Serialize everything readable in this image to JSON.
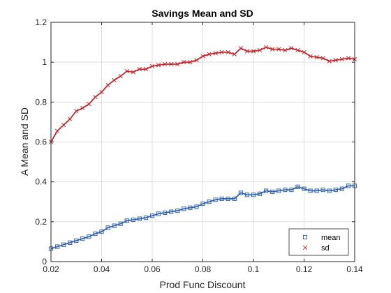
{
  "chart_data": {
    "type": "line",
    "title": "Savings Mean and SD",
    "xlabel": "Prod Func Discount",
    "ylabel": "A Mean and SD",
    "xlim": [
      0.02,
      0.14
    ],
    "ylim": [
      0,
      1.2
    ],
    "x_ticks": [
      "0.02",
      "0.04",
      "0.06",
      "0.08",
      "0.1",
      "0.12",
      "0.14"
    ],
    "y_ticks": [
      "0",
      "0.2",
      "0.4",
      "0.6",
      "0.8",
      "1",
      "1.2"
    ],
    "grid": true,
    "legend_position": "bottom-right",
    "series": [
      {
        "name": "mean",
        "marker": "square",
        "color": "#3264b4",
        "x": [
          0.02,
          0.0225,
          0.025,
          0.0275,
          0.03,
          0.0325,
          0.035,
          0.0375,
          0.04,
          0.0425,
          0.045,
          0.0475,
          0.05,
          0.0525,
          0.055,
          0.0575,
          0.06,
          0.0625,
          0.065,
          0.0675,
          0.07,
          0.0725,
          0.075,
          0.0775,
          0.08,
          0.0825,
          0.085,
          0.0875,
          0.09,
          0.0925,
          0.095,
          0.0975,
          0.1,
          0.1025,
          0.105,
          0.1075,
          0.11,
          0.1125,
          0.115,
          0.1175,
          0.12,
          0.1225,
          0.125,
          0.1275,
          0.13,
          0.1325,
          0.135,
          0.1375,
          0.14
        ],
        "y": [
          0.065,
          0.075,
          0.085,
          0.095,
          0.105,
          0.115,
          0.125,
          0.14,
          0.15,
          0.17,
          0.18,
          0.19,
          0.205,
          0.21,
          0.215,
          0.22,
          0.23,
          0.24,
          0.245,
          0.25,
          0.255,
          0.265,
          0.27,
          0.275,
          0.29,
          0.3,
          0.31,
          0.315,
          0.315,
          0.315,
          0.345,
          0.335,
          0.335,
          0.34,
          0.355,
          0.35,
          0.355,
          0.36,
          0.36,
          0.375,
          0.365,
          0.355,
          0.355,
          0.36,
          0.355,
          0.36,
          0.365,
          0.38,
          0.38
        ]
      },
      {
        "name": "sd",
        "marker": "x",
        "color": "#c8282d",
        "x": [
          0.02,
          0.0225,
          0.025,
          0.0275,
          0.03,
          0.0325,
          0.035,
          0.0375,
          0.04,
          0.0425,
          0.045,
          0.0475,
          0.05,
          0.0525,
          0.055,
          0.0575,
          0.06,
          0.0625,
          0.065,
          0.0675,
          0.07,
          0.0725,
          0.075,
          0.0775,
          0.08,
          0.0825,
          0.085,
          0.0875,
          0.09,
          0.0925,
          0.095,
          0.0975,
          0.1,
          0.1025,
          0.105,
          0.1075,
          0.11,
          0.1125,
          0.115,
          0.1175,
          0.12,
          0.1225,
          0.125,
          0.1275,
          0.13,
          0.1325,
          0.135,
          0.1375,
          0.14
        ],
        "y": [
          0.6,
          0.655,
          0.685,
          0.715,
          0.755,
          0.77,
          0.79,
          0.825,
          0.85,
          0.885,
          0.91,
          0.93,
          0.955,
          0.95,
          0.965,
          0.965,
          0.98,
          0.985,
          0.99,
          0.99,
          0.99,
          1.0,
          1.0,
          1.01,
          1.03,
          1.04,
          1.045,
          1.05,
          1.05,
          1.04,
          1.07,
          1.055,
          1.055,
          1.06,
          1.075,
          1.065,
          1.065,
          1.06,
          1.07,
          1.06,
          1.05,
          1.03,
          1.025,
          1.02,
          1.005,
          1.01,
          1.015,
          1.02,
          1.015
        ]
      }
    ]
  }
}
